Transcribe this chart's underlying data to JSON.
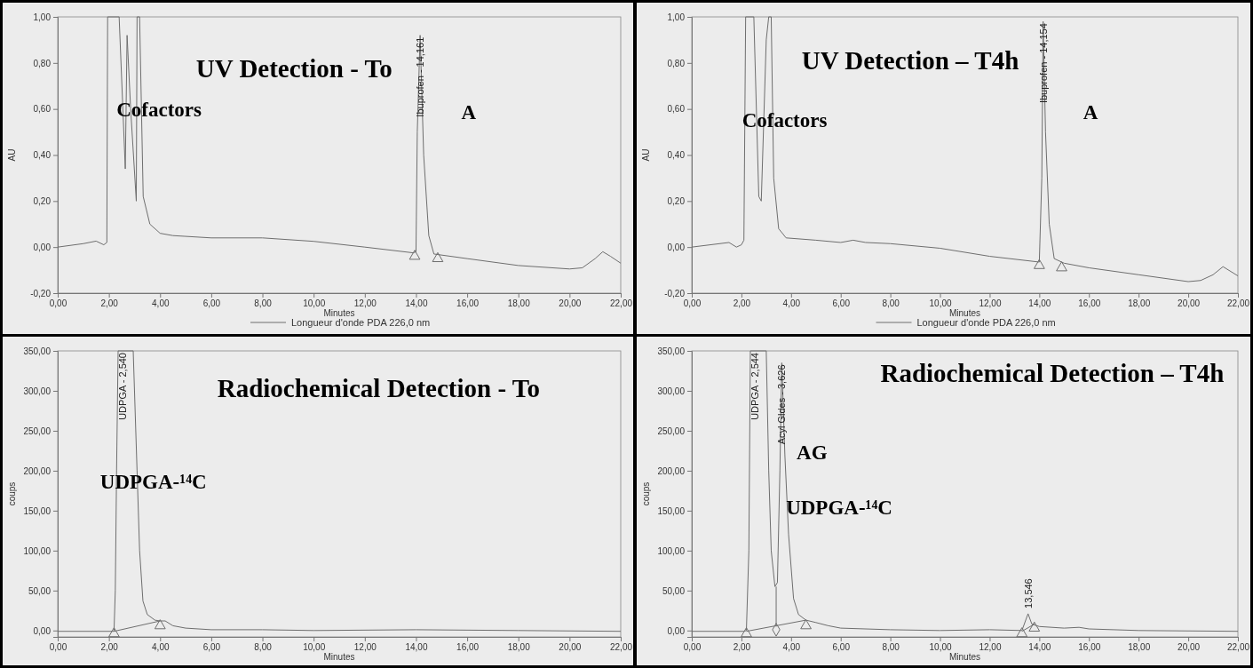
{
  "chart_data": [
    {
      "type": "line",
      "title": "UV Detection - To",
      "xlabel": "Minutes",
      "ylabel": "AU",
      "legend": "bottom",
      "grid": false,
      "xlim": [
        0,
        22
      ],
      "xticks": [
        {
          "value": 0,
          "label": "0,00"
        },
        {
          "value": 2,
          "label": "2,00"
        },
        {
          "value": 4,
          "label": "4,00"
        },
        {
          "value": 6,
          "label": "6,00"
        },
        {
          "value": 8,
          "label": "8,00"
        },
        {
          "value": 10,
          "label": "10,00"
        },
        {
          "value": 12,
          "label": "12,00"
        },
        {
          "value": 14,
          "label": "14,00"
        },
        {
          "value": 16,
          "label": "16,00"
        },
        {
          "value": 18,
          "label": "18,00"
        },
        {
          "value": 20,
          "label": "20,00"
        },
        {
          "value": 22,
          "label": "22,00"
        }
      ],
      "ylim": [
        -0.2,
        1.0
      ],
      "yticks": [
        {
          "value": -0.2,
          "label": "-0,20"
        },
        {
          "value": 0,
          "label": "0,00"
        },
        {
          "value": 0.2,
          "label": "0,20"
        },
        {
          "value": 0.4,
          "label": "0,40"
        },
        {
          "value": 0.6,
          "label": "0,60"
        },
        {
          "value": 0.8,
          "label": "0,80"
        },
        {
          "value": 1.0,
          "label": "1,00"
        }
      ],
      "annotations": [
        "Cofactors",
        "A",
        {
          "text": "Ibuprofen - 14,161",
          "x": 14.161,
          "y": 0.92
        }
      ],
      "series": [
        {
          "name": "Longueur d'onde PDA 226,0 nm",
          "type": "line",
          "color": "#6e6e6e",
          "x": [
            0,
            1.0,
            1.5,
            1.8,
            1.92,
            1.95,
            2.4,
            2.64,
            2.71,
            2.85,
            3.07,
            3.1,
            3.2,
            3.34,
            3.6,
            4.0,
            4.5,
            6,
            8,
            10,
            12,
            13.9,
            14.0,
            14.05,
            14.161,
            14.3,
            14.5,
            14.7,
            16,
            18,
            20,
            20.5,
            21.0,
            21.3,
            21.6,
            22
          ],
          "values": [
            0,
            0.015,
            0.026,
            0.01,
            0.02,
            1.0,
            1.0,
            0.34,
            0.92,
            0.6,
            0.2,
            1.0,
            1.0,
            0.22,
            0.1,
            0.06,
            0.05,
            0.04,
            0.04,
            0.025,
            0.0,
            -0.025,
            -0.02,
            0.5,
            0.92,
            0.4,
            0.05,
            -0.03,
            -0.05,
            -0.08,
            -0.095,
            -0.09,
            -0.05,
            -0.02,
            -0.04,
            -0.07
          ]
        },
        {
          "type": "scatter",
          "marker": "triangle",
          "color": "#6e6e6e",
          "x": [
            13.95,
            14.85
          ],
          "values": [
            -0.04,
            -0.05
          ]
        }
      ]
    },
    {
      "type": "line",
      "title": "UV Detection – T4h",
      "xlabel": "Minutes",
      "ylabel": "AU",
      "legend": "bottom",
      "grid": false,
      "xlim": [
        0,
        22
      ],
      "xticks": [
        {
          "value": 0,
          "label": "0,00"
        },
        {
          "value": 2,
          "label": "2,00"
        },
        {
          "value": 4,
          "label": "4,00"
        },
        {
          "value": 6,
          "label": "6,00"
        },
        {
          "value": 8,
          "label": "8,00"
        },
        {
          "value": 10,
          "label": "10,00"
        },
        {
          "value": 12,
          "label": "12,00"
        },
        {
          "value": 14,
          "label": "14,00"
        },
        {
          "value": 16,
          "label": "16,00"
        },
        {
          "value": 18,
          "label": "18,00"
        },
        {
          "value": 20,
          "label": "20,00"
        },
        {
          "value": 22,
          "label": "22,00"
        }
      ],
      "ylim": [
        -0.2,
        1.0
      ],
      "yticks": [
        {
          "value": -0.2,
          "label": "-0,20"
        },
        {
          "value": 0,
          "label": "0,00"
        },
        {
          "value": 0.2,
          "label": "0,20"
        },
        {
          "value": 0.4,
          "label": "0,40"
        },
        {
          "value": 0.6,
          "label": "0,60"
        },
        {
          "value": 0.8,
          "label": "0,80"
        },
        {
          "value": 1.0,
          "label": "1,00"
        }
      ],
      "annotations": [
        "Cofactors",
        "A",
        {
          "text": "Ibuprofen - 14,154",
          "x": 14.154,
          "y": 0.98
        }
      ],
      "series": [
        {
          "name": "Longueur d'onde PDA 226,0 nm",
          "type": "line",
          "color": "#6e6e6e",
          "x": [
            0,
            1.5,
            1.8,
            2.0,
            2.1,
            2.17,
            2.5,
            2.7,
            2.8,
            3.0,
            3.1,
            3.2,
            3.3,
            3.5,
            3.8,
            5,
            6.0,
            6.5,
            7,
            8,
            10,
            12,
            14.0,
            14.1,
            14.154,
            14.25,
            14.4,
            14.6,
            15,
            16,
            18,
            20,
            20.5,
            21,
            21.4,
            22
          ],
          "values": [
            0,
            0.02,
            0.0,
            0.01,
            0.03,
            1.0,
            1.0,
            0.22,
            0.2,
            0.9,
            1.0,
            1.0,
            0.3,
            0.08,
            0.04,
            0.03,
            0.02,
            0.03,
            0.02,
            0.015,
            -0.005,
            -0.04,
            -0.065,
            0.3,
            0.98,
            0.5,
            0.1,
            -0.05,
            -0.07,
            -0.09,
            -0.12,
            -0.15,
            -0.145,
            -0.12,
            -0.085,
            -0.125
          ]
        },
        {
          "type": "scatter",
          "marker": "triangle",
          "color": "#6e6e6e",
          "x": [
            14.0,
            14.9
          ],
          "values": [
            -0.08,
            -0.09
          ]
        }
      ]
    },
    {
      "type": "line",
      "title": "Radiochemical Detection - To",
      "xlabel": "Minutes",
      "ylabel": "coups",
      "grid": false,
      "xlim": [
        0,
        22
      ],
      "xticks": [
        {
          "value": 0,
          "label": "0,00"
        },
        {
          "value": 2,
          "label": "2,00"
        },
        {
          "value": 4,
          "label": "4,00"
        },
        {
          "value": 6,
          "label": "6,00"
        },
        {
          "value": 8,
          "label": "8,00"
        },
        {
          "value": 10,
          "label": "10,00"
        },
        {
          "value": 12,
          "label": "12,00"
        },
        {
          "value": 14,
          "label": "14,00"
        },
        {
          "value": 16,
          "label": "16,00"
        },
        {
          "value": 18,
          "label": "18,00"
        },
        {
          "value": 20,
          "label": "20,00"
        },
        {
          "value": 22,
          "label": "22,00"
        }
      ],
      "ylim": [
        -8,
        350
      ],
      "yticks": [
        {
          "value": 0,
          "label": "0,00"
        },
        {
          "value": 50,
          "label": "50,00"
        },
        {
          "value": 100,
          "label": "100,00"
        },
        {
          "value": 150,
          "label": "150,00"
        },
        {
          "value": 200,
          "label": "200,00"
        },
        {
          "value": 250,
          "label": "250,00"
        },
        {
          "value": 300,
          "label": "300,00"
        },
        {
          "value": 350,
          "label": "350,00"
        }
      ],
      "annotations": [
        "UDPGA-¹⁴C",
        {
          "text": "UDPGA - 2,540",
          "x": 2.54,
          "y": 350
        }
      ],
      "series": [
        {
          "type": "line",
          "color": "#6e6e6e",
          "x": [
            0,
            2.2,
            2.25,
            2.3,
            2.36,
            2.95,
            3.0,
            3.1,
            3.2,
            3.33,
            3.5,
            3.8,
            4.0,
            4.2,
            4.5,
            5.0,
            6,
            8,
            10,
            14,
            18,
            22
          ],
          "values": [
            -1,
            -1,
            50,
            200,
            350,
            350,
            300,
            200,
            100,
            37,
            20,
            13,
            12,
            12,
            6,
            3,
            1,
            1,
            0,
            1,
            0,
            -1
          ]
        },
        {
          "type": "line",
          "color": "#6e6e6e",
          "x": [
            2.2,
            4.0
          ],
          "values": [
            -1,
            12
          ]
        },
        {
          "type": "scatter",
          "marker": "triangle",
          "color": "#6e6e6e",
          "x": [
            2.2,
            4.0
          ],
          "values": [
            -4,
            6
          ]
        }
      ]
    },
    {
      "type": "line",
      "title": "Radiochemical Detection – T4h",
      "xlabel": "Minutes",
      "ylabel": "coups",
      "grid": false,
      "xlim": [
        0,
        22
      ],
      "xticks": [
        {
          "value": 0,
          "label": "0,00"
        },
        {
          "value": 2,
          "label": "2,00"
        },
        {
          "value": 4,
          "label": "4,00"
        },
        {
          "value": 6,
          "label": "6,00"
        },
        {
          "value": 8,
          "label": "8,00"
        },
        {
          "value": 10,
          "label": "10,00"
        },
        {
          "value": 12,
          "label": "12,00"
        },
        {
          "value": 14,
          "label": "14,00"
        },
        {
          "value": 16,
          "label": "16,00"
        },
        {
          "value": 18,
          "label": "18,00"
        },
        {
          "value": 20,
          "label": "20,00"
        },
        {
          "value": 22,
          "label": "22,00"
        }
      ],
      "ylim": [
        -8,
        350
      ],
      "yticks": [
        {
          "value": 0,
          "label": "0,00"
        },
        {
          "value": 50,
          "label": "50,00"
        },
        {
          "value": 100,
          "label": "100,00"
        },
        {
          "value": 150,
          "label": "150,00"
        },
        {
          "value": 200,
          "label": "200,00"
        },
        {
          "value": 250,
          "label": "250,00"
        },
        {
          "value": 300,
          "label": "300,00"
        },
        {
          "value": 350,
          "label": "350,00"
        }
      ],
      "annotations": [
        "UDPGA-¹⁴C",
        "AG",
        {
          "text": "UDPGA - 2,544",
          "x": 2.544,
          "y": 350
        },
        {
          "text": "Acyl Gldes - 3,626",
          "x": 3.626,
          "y": 335
        },
        {
          "text": "13,546",
          "x": 13.546,
          "y": 21
        }
      ],
      "series": [
        {
          "type": "line",
          "color": "#6e6e6e",
          "x": [
            0,
            2.1,
            2.2,
            2.3,
            2.36,
            3.0,
            3.1,
            3.2,
            3.35,
            3.45,
            3.55,
            3.626,
            3.75,
            3.9,
            4.1,
            4.3,
            4.6,
            5,
            5.5,
            6,
            8,
            10,
            12,
            13.3,
            13.546,
            13.7,
            14,
            15,
            15.6,
            16,
            18,
            22
          ],
          "values": [
            -1,
            -1,
            0,
            100,
            350,
            350,
            200,
            100,
            55,
            60,
            200,
            335,
            220,
            120,
            40,
            20,
            13,
            10,
            6,
            3,
            1,
            0,
            1,
            0,
            21,
            8,
            5,
            3,
            4,
            2,
            0,
            -1
          ]
        },
        {
          "type": "line",
          "color": "#6e6e6e",
          "x": [
            2.2,
            4.6
          ],
          "values": [
            -1,
            13
          ]
        },
        {
          "type": "line",
          "color": "#6e6e6e",
          "x": [
            3.4,
            3.4
          ],
          "values": [
            5,
            55
          ]
        },
        {
          "type": "line",
          "color": "#6e6e6e",
          "x": [
            13.3,
            13.8
          ],
          "values": [
            -1,
            8
          ]
        },
        {
          "type": "scatter",
          "marker": "triangle",
          "color": "#6e6e6e",
          "x": [
            2.2,
            4.6,
            13.3,
            13.8
          ],
          "values": [
            -4,
            6,
            -4,
            3
          ]
        },
        {
          "type": "scatter",
          "marker": "diamond",
          "color": "#6e6e6e",
          "x": [
            3.4
          ],
          "values": [
            1
          ]
        }
      ]
    }
  ]
}
